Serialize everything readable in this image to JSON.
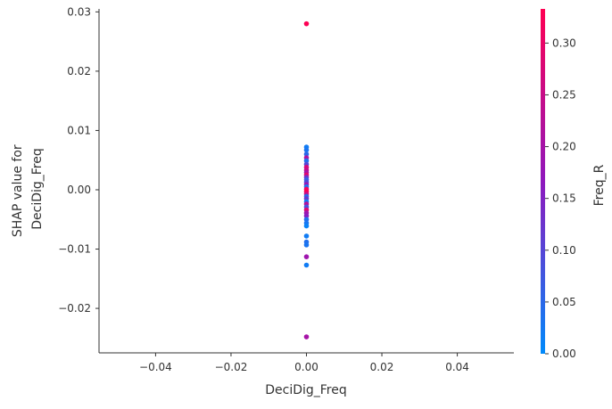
{
  "chart_data": {
    "type": "scatter",
    "xlabel": "DeciDig_Freq",
    "ylabel_lines": [
      "SHAP value for",
      "DeciDig_Freq"
    ],
    "xlim": [
      -0.055,
      0.055
    ],
    "ylim": [
      -0.0275,
      0.0305
    ],
    "xticks": [
      -0.04,
      -0.02,
      0.0,
      0.02,
      0.04
    ],
    "xtick_labels": [
      "−0.04",
      "−0.02",
      "0.00",
      "0.02",
      "0.04"
    ],
    "yticks": [
      -0.02,
      -0.01,
      0.0,
      0.01,
      0.02,
      0.03
    ],
    "ytick_labels": [
      "−0.02",
      "−0.01",
      "0.00",
      "0.01",
      "0.02",
      "0.03"
    ],
    "colorbar": {
      "label": "Freq_R",
      "range": [
        0.0,
        0.333
      ],
      "ticks": [
        0.0,
        0.05,
        0.1,
        0.15,
        0.2,
        0.25,
        0.3
      ],
      "tick_labels": [
        "0.00",
        "0.05",
        "0.10",
        "0.15",
        "0.20",
        "0.25",
        "0.30"
      ],
      "colors": [
        "#008afb",
        "#8f18bd",
        "#ff0052"
      ]
    },
    "points": [
      {
        "x": 0.0,
        "y": 0.028,
        "c": 0.33
      },
      {
        "x": 0.0,
        "y": 0.0072,
        "c": 0.02
      },
      {
        "x": 0.0,
        "y": 0.0067,
        "c": 0.03
      },
      {
        "x": 0.0,
        "y": 0.006,
        "c": 0.05
      },
      {
        "x": 0.0,
        "y": 0.0054,
        "c": 0.21
      },
      {
        "x": 0.0,
        "y": 0.0049,
        "c": 0.04
      },
      {
        "x": 0.0,
        "y": 0.0043,
        "c": 0.1
      },
      {
        "x": 0.0,
        "y": 0.0038,
        "c": 0.27
      },
      {
        "x": 0.0,
        "y": 0.0033,
        "c": 0.24
      },
      {
        "x": 0.0,
        "y": 0.0029,
        "c": 0.2
      },
      {
        "x": 0.0,
        "y": 0.0025,
        "c": 0.29
      },
      {
        "x": 0.0,
        "y": 0.0021,
        "c": 0.13
      },
      {
        "x": 0.0,
        "y": 0.0017,
        "c": 0.06
      },
      {
        "x": 0.0,
        "y": 0.0013,
        "c": 0.09
      },
      {
        "x": 0.0,
        "y": 0.0009,
        "c": 0.18
      },
      {
        "x": 0.0,
        "y": 0.0005,
        "c": 0.03
      },
      {
        "x": 0.0,
        "y": 0.0001,
        "c": 0.31
      },
      {
        "x": 0.0,
        "y": -0.0003,
        "c": 0.33
      },
      {
        "x": 0.0,
        "y": -0.0007,
        "c": 0.26
      },
      {
        "x": 0.0,
        "y": -0.0011,
        "c": 0.05
      },
      {
        "x": 0.0,
        "y": -0.0015,
        "c": 0.12
      },
      {
        "x": 0.0,
        "y": -0.002,
        "c": 0.02
      },
      {
        "x": 0.0,
        "y": -0.0024,
        "c": 0.22
      },
      {
        "x": 0.0,
        "y": -0.0029,
        "c": 0.08
      },
      {
        "x": 0.0,
        "y": -0.0034,
        "c": 0.28
      },
      {
        "x": 0.0,
        "y": -0.0039,
        "c": 0.19
      },
      {
        "x": 0.0,
        "y": -0.0044,
        "c": 0.16
      },
      {
        "x": 0.0,
        "y": -0.005,
        "c": 0.04
      },
      {
        "x": 0.0,
        "y": -0.0056,
        "c": 0.03
      },
      {
        "x": 0.0,
        "y": -0.0061,
        "c": 0.01
      },
      {
        "x": 0.0,
        "y": -0.0078,
        "c": 0.02
      },
      {
        "x": 0.0,
        "y": -0.0088,
        "c": 0.04
      },
      {
        "x": 0.0,
        "y": -0.0093,
        "c": 0.03
      },
      {
        "x": 0.0,
        "y": -0.0113,
        "c": 0.19
      },
      {
        "x": 0.0,
        "y": -0.0127,
        "c": 0.02
      },
      {
        "x": 0.0,
        "y": -0.0248,
        "c": 0.2
      }
    ]
  }
}
